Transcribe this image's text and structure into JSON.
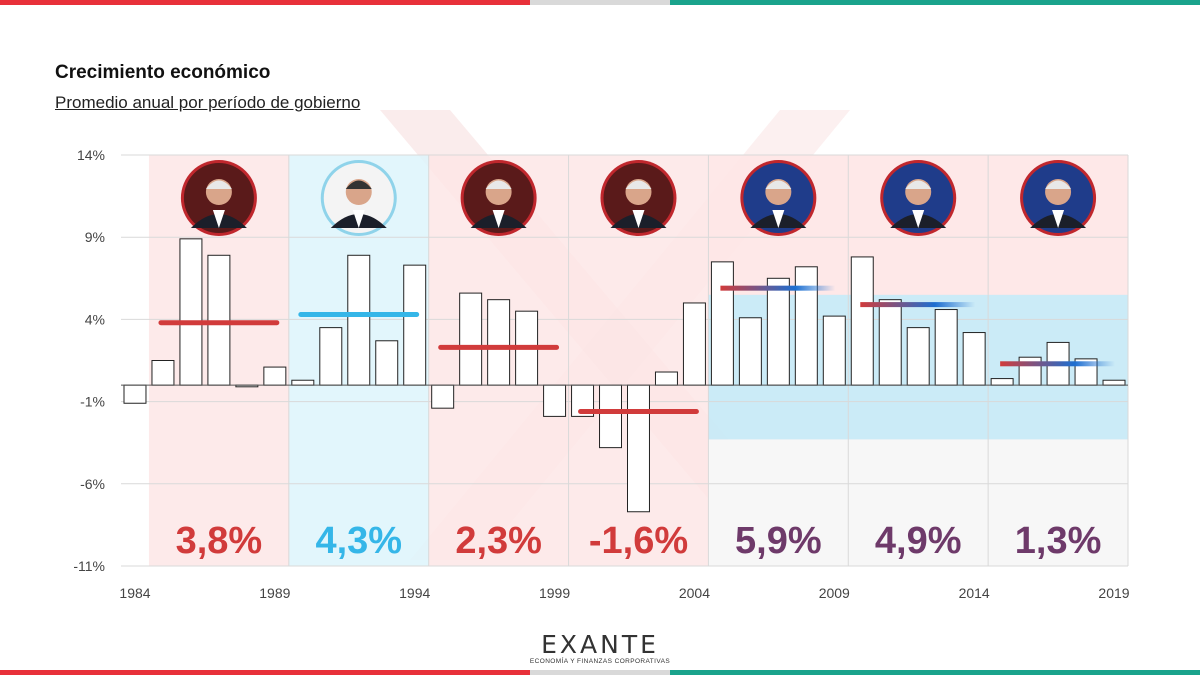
{
  "header": {
    "title": "Crecimiento económico",
    "subtitle": "Promedio anual por período de gobierno"
  },
  "colors": {
    "red": "#d13b3b",
    "blue": "#35b6e8",
    "purple": "#6e3a6a",
    "period_red_bg": "#fde6e6",
    "period_blue_bg": "#ddf4fb",
    "band_blue": "#c5eaf7",
    "stripe_red": "#e8303a",
    "stripe_gray": "#d9d9d9",
    "stripe_teal": "#1aa38c"
  },
  "chart_data": {
    "type": "bar",
    "title": "Crecimiento económico",
    "subtitle": "Promedio anual por período de gobierno",
    "ylim": [
      -11,
      14
    ],
    "y_ticks": [
      "14%",
      "9%",
      "4%",
      "-1%",
      "-6%",
      "-11%"
    ],
    "y_tick_values": [
      14,
      9,
      4,
      -1,
      -6,
      -11
    ],
    "x_ticks": [
      "1984",
      "1989",
      "1994",
      "1999",
      "2004",
      "2009",
      "2014",
      "2019"
    ],
    "grid": true,
    "series": [
      {
        "years": [
          1984,
          1985,
          1986,
          1987,
          1988,
          1989,
          1990,
          1991,
          1992,
          1993,
          1994,
          1995,
          1996,
          1997,
          1998,
          1999,
          2000,
          2001,
          2002,
          2003,
          2004,
          2005,
          2006,
          2007,
          2008,
          2009,
          2010,
          2011,
          2012,
          2013,
          2014,
          2015,
          2016,
          2017,
          2018,
          2019
        ],
        "values": [
          -1.1,
          1.5,
          8.9,
          7.9,
          -0.1,
          1.1,
          0.3,
          3.5,
          7.9,
          2.7,
          7.3,
          -1.4,
          5.6,
          5.2,
          4.5,
          -1.9,
          -1.9,
          -3.8,
          -7.7,
          0.8,
          5.0,
          7.5,
          4.1,
          6.5,
          7.2,
          4.2,
          7.8,
          5.2,
          3.5,
          4.6,
          3.2,
          0.4,
          1.7,
          2.6,
          1.6,
          0.3
        ]
      }
    ],
    "periods": [
      {
        "start": 1985,
        "end": 1989,
        "average": 3.8,
        "label": "3,8%",
        "color": "red",
        "president_icon": "president-portrait-icon"
      },
      {
        "start": 1990,
        "end": 1994,
        "average": 4.3,
        "label": "4,3%",
        "color": "blue",
        "president_icon": "president-portrait-icon"
      },
      {
        "start": 1995,
        "end": 1999,
        "average": 2.3,
        "label": "2,3%",
        "color": "red",
        "president_icon": "president-portrait-icon"
      },
      {
        "start": 2000,
        "end": 2004,
        "average": -1.6,
        "label": "-1,6%",
        "color": "red",
        "president_icon": "president-portrait-icon"
      },
      {
        "start": 2005,
        "end": 2009,
        "average": 5.9,
        "label": "5,9%",
        "color": "purple",
        "president_icon": "president-portrait-icon"
      },
      {
        "start": 2010,
        "end": 2014,
        "average": 4.9,
        "label": "4,9%",
        "color": "purple",
        "president_icon": "president-portrait-icon"
      },
      {
        "start": 2015,
        "end": 2019,
        "average": 1.3,
        "label": "1,3%",
        "color": "purple",
        "president_icon": "president-portrait-icon"
      }
    ],
    "shaded_band": [
      -3.3,
      5.5
    ]
  },
  "footer": {
    "logo_name": "EXANTE",
    "logo_tagline": "ECONOMÍA Y FINANZAS CORPORATIVAS"
  }
}
